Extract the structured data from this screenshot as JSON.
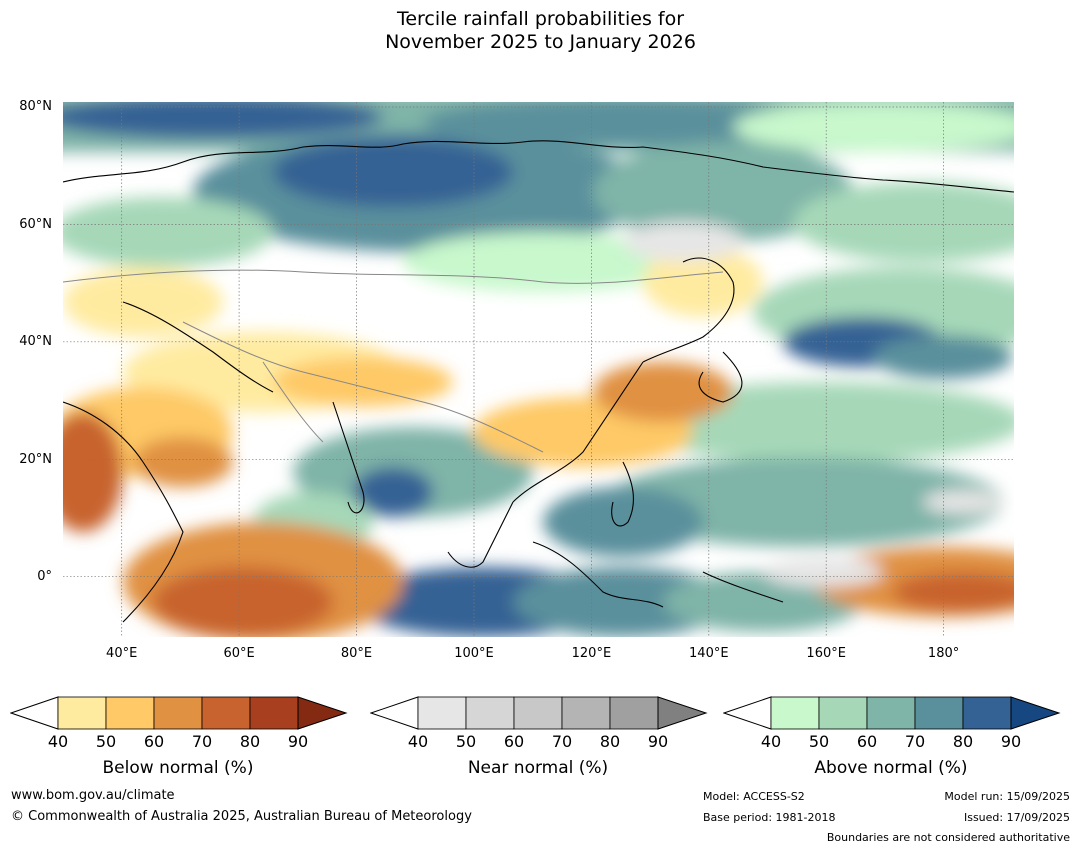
{
  "title": {
    "line1": "Tercile rainfall probabilities for",
    "line2": "November 2025 to January 2026"
  },
  "map": {
    "lat_labels": [
      "80°N",
      "60°N",
      "40°N",
      "20°N",
      "0°"
    ],
    "lon_labels": [
      "40°E",
      "60°E",
      "80°E",
      "100°E",
      "120°E",
      "140°E",
      "160°E",
      "180°"
    ],
    "extent": {
      "lon": [
        30,
        192
      ],
      "lat": [
        -10,
        80
      ]
    }
  },
  "legends": [
    {
      "name": "below",
      "title": "Below normal (%)",
      "ticks": [
        "40",
        "50",
        "60",
        "70",
        "80",
        "90"
      ],
      "colors": [
        "#ffeba0",
        "#fec966",
        "#e09142",
        "#c8632f",
        "#a8401f",
        "#842a12"
      ]
    },
    {
      "name": "near",
      "title": "Near normal (%)",
      "ticks": [
        "40",
        "50",
        "60",
        "70",
        "80",
        "90"
      ],
      "colors": [
        "#e6e6e6",
        "#d6d6d6",
        "#c8c8c8",
        "#b4b4b4",
        "#a0a0a0",
        "#808080"
      ]
    },
    {
      "name": "above",
      "title": "Above normal (%)",
      "ticks": [
        "40",
        "50",
        "60",
        "70",
        "80",
        "90"
      ],
      "colors": [
        "#c8f8cc",
        "#a6d8b8",
        "#7fb4a8",
        "#5a909c",
        "#346294",
        "#164780"
      ]
    }
  ],
  "footer": {
    "url": "www.bom.gov.au/climate",
    "copyright": "© Commonwealth of Australia 2025, Australian Bureau of Meteorology",
    "model": "Model: ACCESS-S2",
    "base_period": "Base period: 1981-2018",
    "model_run": "Model run: 15/09/2025",
    "issued": "Issued: 17/09/2025",
    "disclaimer": "Boundaries are not considered authoritative"
  }
}
